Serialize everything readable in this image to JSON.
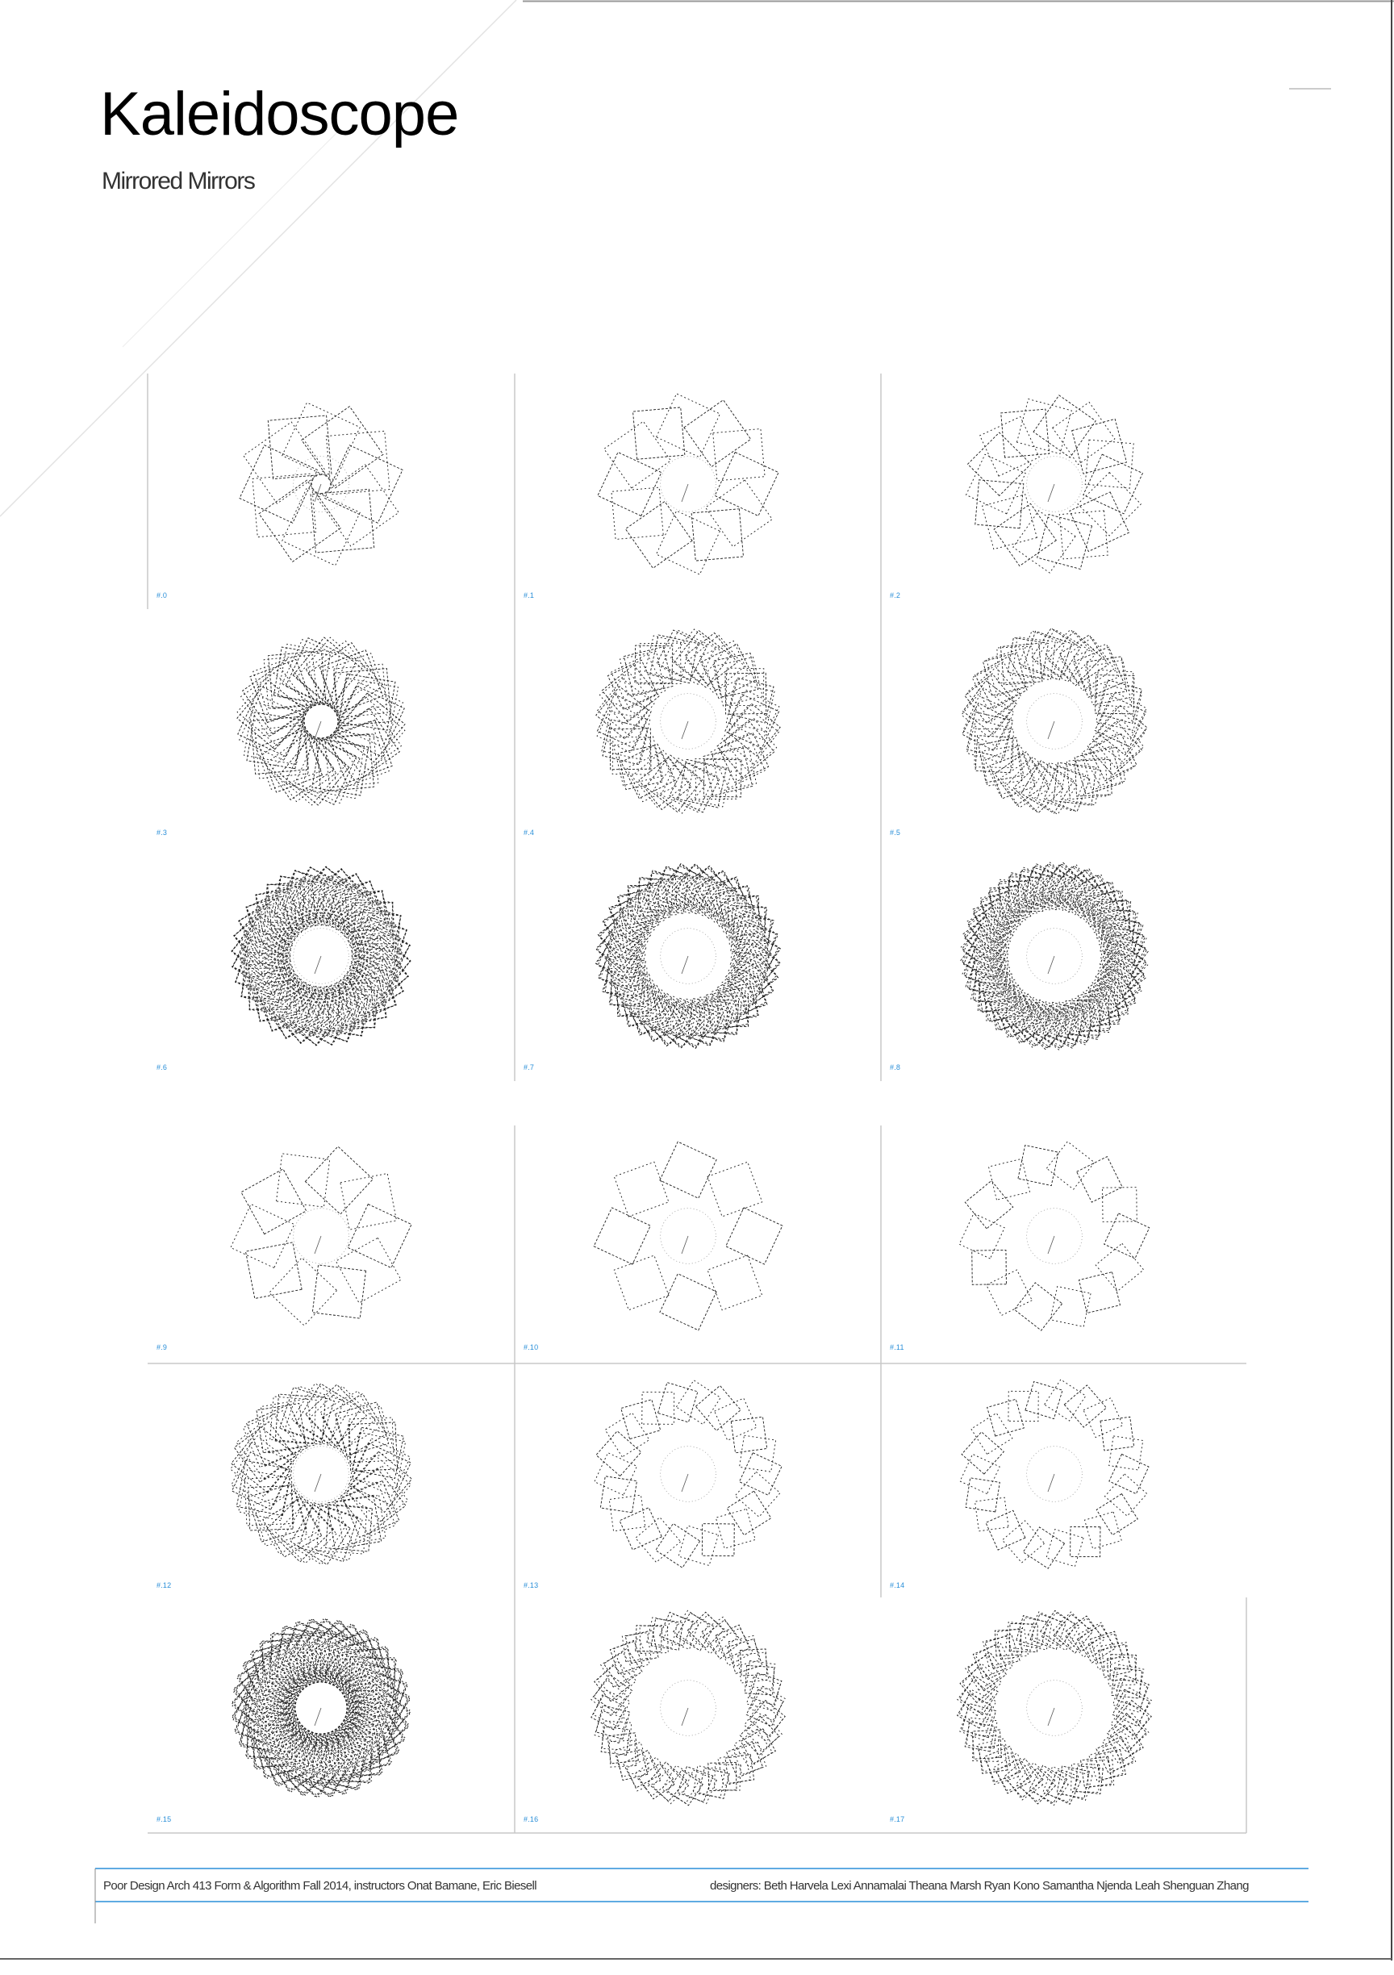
{
  "poster": {
    "title": "Kaleidoscope",
    "subtitle": "Mirrored Mirrors"
  },
  "footer": {
    "left": "Poor Design Arch 413 Form & Algorithm Fall 2014, instructors Onat Bamane, Eric Biesell",
    "right": "designers: Beth Harvela  Lexi Annamalai  Theana Marsh  Ryan Kono  Samantha Njenda Leah  Shenguan Zhang"
  },
  "colors": {
    "label": "#2a8fd8",
    "rule": "#2a8fd8",
    "pattern": "#1a1a1a",
    "grid": "#c8c8c8"
  },
  "panels": [
    {
      "label": "#.0",
      "sides": 4,
      "copies": 12,
      "size": 0.55,
      "offset": 0.4,
      "density": 1
    },
    {
      "label": "#.1",
      "sides": 4,
      "copies": 12,
      "size": 0.45,
      "offset": 0.55,
      "density": 1
    },
    {
      "label": "#.2",
      "sides": 4,
      "copies": 18,
      "size": 0.42,
      "offset": 0.55,
      "density": 1
    },
    {
      "label": "#.3",
      "sides": 4,
      "copies": 24,
      "size": 0.5,
      "offset": 0.45,
      "density": 2
    },
    {
      "label": "#.4",
      "sides": 4,
      "copies": 28,
      "size": 0.38,
      "offset": 0.6,
      "density": 2
    },
    {
      "label": "#.5",
      "sides": 4,
      "copies": 30,
      "size": 0.36,
      "offset": 0.62,
      "density": 2
    },
    {
      "label": "#.6",
      "sides": 4,
      "copies": 36,
      "size": 0.42,
      "offset": 0.55,
      "density": 3
    },
    {
      "label": "#.7",
      "sides": 4,
      "copies": 40,
      "size": 0.34,
      "offset": 0.62,
      "density": 3
    },
    {
      "label": "#.8",
      "sides": 4,
      "copies": 44,
      "size": 0.32,
      "offset": 0.64,
      "density": 3
    },
    {
      "label": "#.9",
      "sides": 4,
      "copies": 10,
      "size": 0.45,
      "offset": 0.55,
      "density": 1
    },
    {
      "label": "#.10",
      "sides": 4,
      "copies": 8,
      "size": 0.4,
      "offset": 0.62,
      "density": 1
    },
    {
      "label": "#.11",
      "sides": 4,
      "copies": 14,
      "size": 0.32,
      "offset": 0.68,
      "density": 1
    },
    {
      "label": "#.12",
      "sides": 4,
      "copies": 26,
      "size": 0.44,
      "offset": 0.55,
      "density": 2
    },
    {
      "label": "#.13",
      "sides": 4,
      "copies": 22,
      "size": 0.3,
      "offset": 0.68,
      "density": 1
    },
    {
      "label": "#.14",
      "sides": 4,
      "copies": 22,
      "size": 0.28,
      "offset": 0.7,
      "density": 1
    },
    {
      "label": "#.15",
      "sides": 4,
      "copies": 40,
      "size": 0.46,
      "offset": 0.52,
      "density": 3
    },
    {
      "label": "#.16",
      "sides": 4,
      "copies": 34,
      "size": 0.26,
      "offset": 0.72,
      "density": 2
    },
    {
      "label": "#.17",
      "sides": 4,
      "copies": 38,
      "size": 0.26,
      "offset": 0.72,
      "density": 2
    }
  ]
}
